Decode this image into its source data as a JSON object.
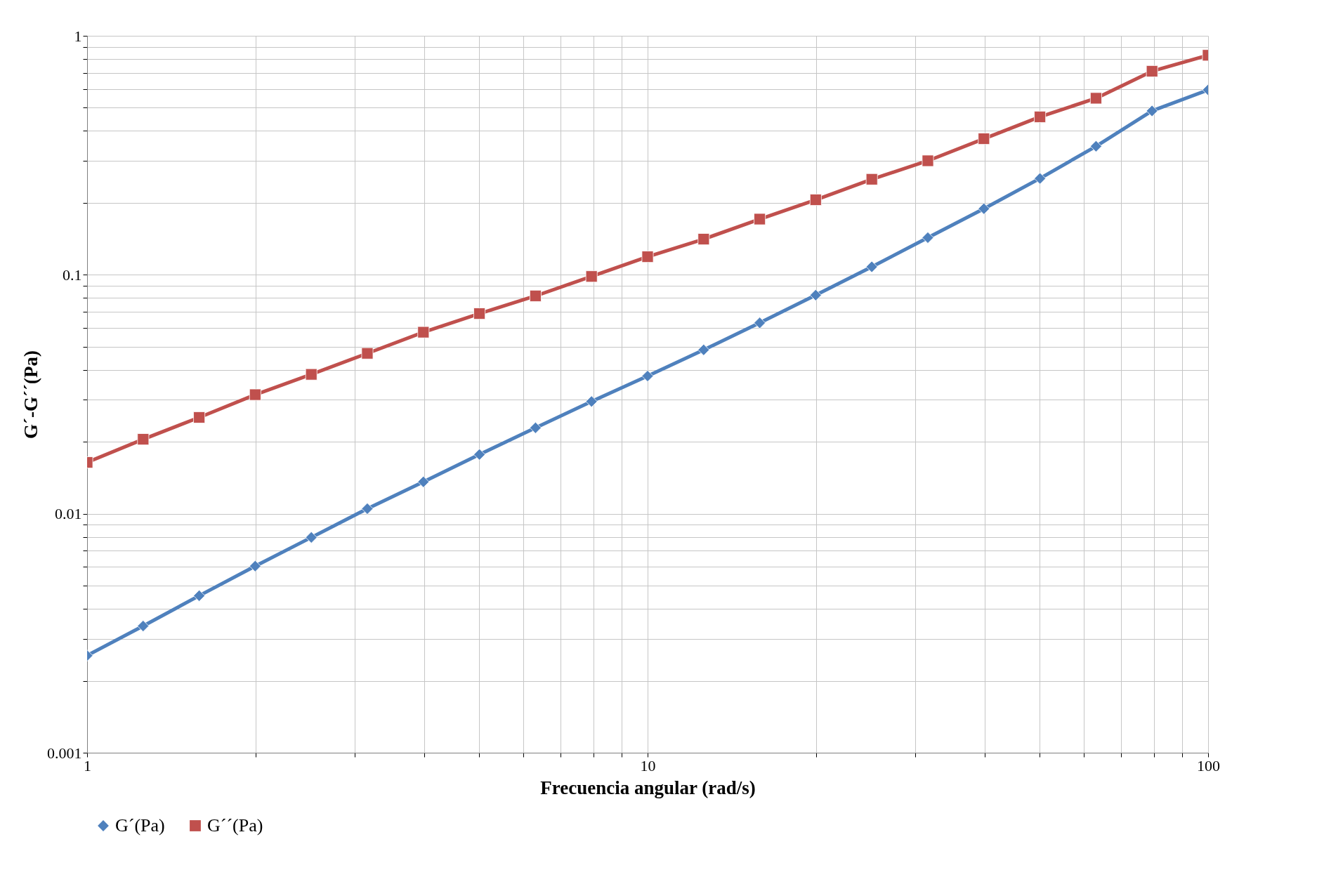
{
  "chart_data": {
    "type": "line",
    "xlabel": "Frecuencia angular (rad/s)",
    "ylabel": "G´-G´´(Pa)",
    "x": [
      1,
      1.259,
      1.585,
      1.995,
      2.512,
      3.162,
      3.981,
      5.012,
      6.31,
      7.943,
      10,
      12.59,
      15.85,
      19.95,
      25.12,
      31.62,
      39.81,
      50.12,
      63.1,
      79.43,
      100
    ],
    "series": [
      {
        "name": "G´(Pa)",
        "color": "#4f81bd",
        "marker": "diamond",
        "values": [
          0.00255,
          0.00339,
          0.00454,
          0.00604,
          0.00796,
          0.0105,
          0.0136,
          0.0177,
          0.0229,
          0.0295,
          0.0377,
          0.0485,
          0.0629,
          0.0822,
          0.108,
          0.143,
          0.189,
          0.253,
          0.345,
          0.485,
          0.594
        ]
      },
      {
        "name": "G´´(Pa)",
        "color": "#c0504d",
        "marker": "square",
        "values": [
          0.0164,
          0.0205,
          0.0253,
          0.0315,
          0.0383,
          0.0469,
          0.0575,
          0.0688,
          0.0816,
          0.0984,
          0.119,
          0.141,
          0.171,
          0.206,
          0.251,
          0.3,
          0.371,
          0.458,
          0.548,
          0.711,
          0.829
        ]
      }
    ],
    "xlim": [
      1,
      100
    ],
    "xticks": [
      1,
      10,
      100
    ],
    "ylim": [
      0.001,
      1
    ],
    "yticks": [
      0.001,
      0.01,
      0.1,
      1
    ],
    "log": "xy",
    "grid": true,
    "legend": "bottom",
    "line_style": "solid"
  }
}
